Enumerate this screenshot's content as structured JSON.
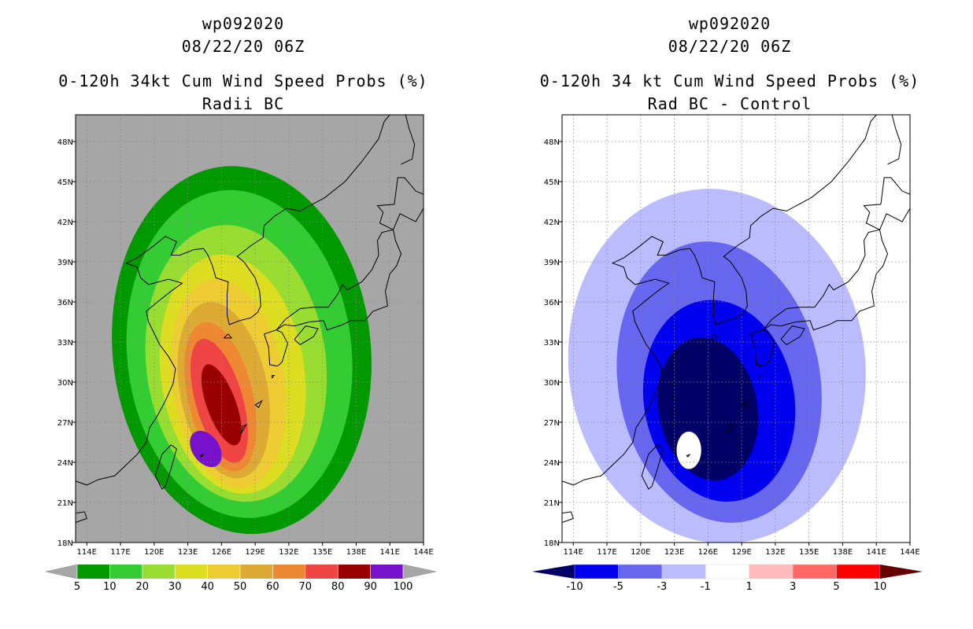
{
  "chart_data": [
    {
      "type": "heatmap",
      "storm_id": "wp092020",
      "date": "08/22/20 06Z",
      "title": "0-120h 34kt Cum Wind Speed Probs (%)",
      "subtitle": "Radii BC",
      "x_ticks": [
        "114E",
        "117E",
        "120E",
        "123E",
        "126E",
        "129E",
        "132E",
        "135E",
        "138E",
        "141E",
        "144E"
      ],
      "y_ticks": [
        "48N",
        "45N",
        "42N",
        "39N",
        "36N",
        "33N",
        "30N",
        "27N",
        "24N",
        "21N",
        "18N"
      ],
      "xlim": [
        113,
        144
      ],
      "ylim": [
        18,
        50
      ],
      "background_color": "#a6a6a6",
      "colorbar": {
        "labels": [
          "5",
          "10",
          "20",
          "30",
          "40",
          "50",
          "60",
          "70",
          "80",
          "90",
          "100"
        ],
        "colors": [
          "#009900",
          "#33cc33",
          "#99dd33",
          "#dddd22",
          "#eecc33",
          "#ddaa33",
          "#ee8833",
          "#ee4444",
          "#990000",
          "#7711cc"
        ],
        "end_color": "#a6a6a6"
      },
      "levels": [
        5,
        10,
        20,
        30,
        40,
        50,
        60,
        70,
        80,
        90
      ]
    },
    {
      "type": "heatmap",
      "storm_id": "wp092020",
      "date": "08/22/20 06Z",
      "title": "0-120h 34 kt Cum Wind Speed Probs (%)",
      "subtitle": "Rad BC - Control",
      "x_ticks": [
        "114E",
        "117E",
        "120E",
        "123E",
        "126E",
        "129E",
        "132E",
        "135E",
        "138E",
        "141E",
        "144E"
      ],
      "y_ticks": [
        "48N",
        "45N",
        "42N",
        "39N",
        "36N",
        "33N",
        "30N",
        "27N",
        "24N",
        "21N",
        "18N"
      ],
      "xlim": [
        113,
        144
      ],
      "ylim": [
        18,
        50
      ],
      "background_color": "#ffffff",
      "colorbar": {
        "labels": [
          "-10",
          "-5",
          "-3",
          "-1",
          "1",
          "3",
          "5",
          "10"
        ],
        "colors": [
          "#0000ee",
          "#6666ee",
          "#bbbbff",
          "#ffffff",
          "#ffbbbb",
          "#ff6666",
          "#ff0000"
        ],
        "low_end_color": "#000066",
        "high_end_color": "#660000"
      },
      "levels": [
        -10,
        -5,
        -3,
        -1
      ]
    }
  ]
}
